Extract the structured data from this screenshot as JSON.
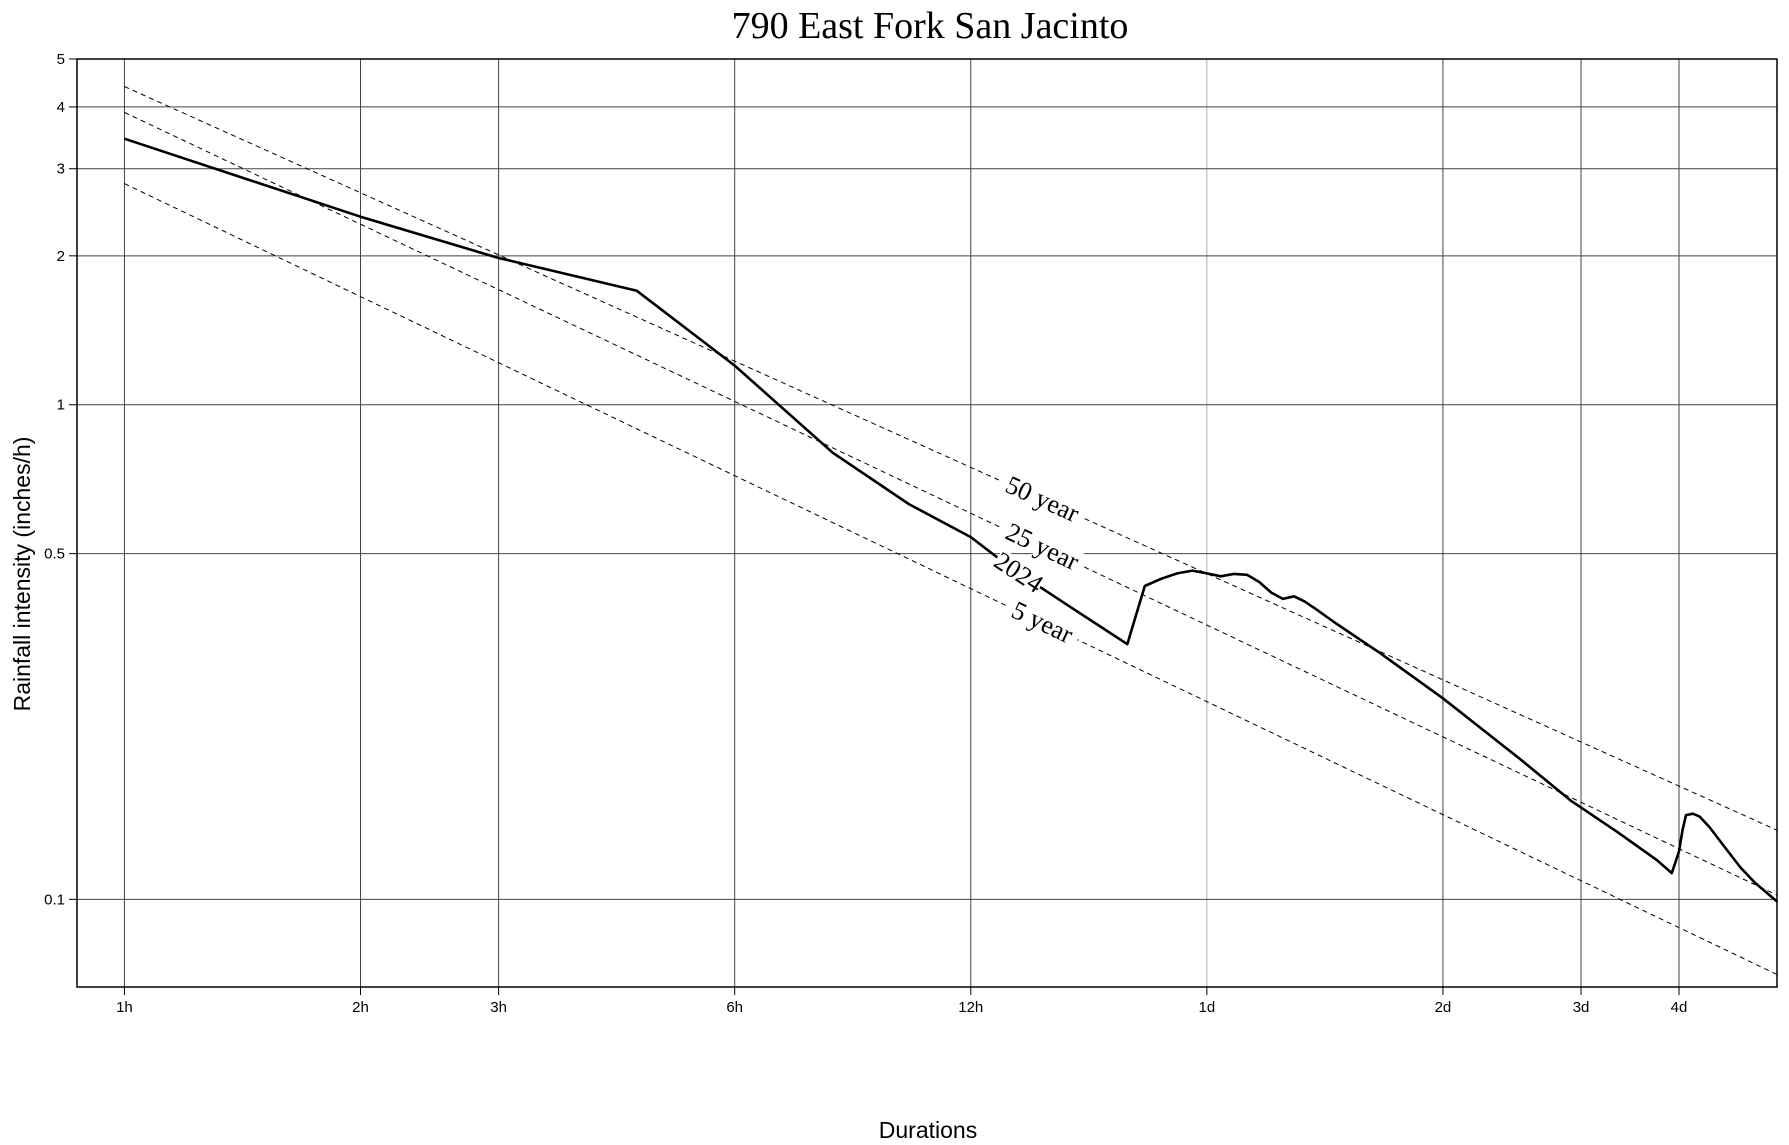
{
  "chart_data": {
    "type": "line",
    "title": "790 East Fork San Jacinto",
    "xlabel": "Durations",
    "ylabel": "Rainfall intensity (inches/h)",
    "x_scale": "log",
    "y_scale": "log",
    "x_unit": "hours",
    "xlim": [
      0.87,
      128
    ],
    "ylim": [
      0.0665,
      5
    ],
    "grid": true,
    "legend": "none",
    "x_ticks": [
      {
        "value": 1,
        "label": "1h"
      },
      {
        "value": 2,
        "label": "2h"
      },
      {
        "value": 3,
        "label": "3h"
      },
      {
        "value": 6,
        "label": "6h"
      },
      {
        "value": 12,
        "label": "12h"
      },
      {
        "value": 24,
        "label": "1d"
      },
      {
        "value": 48,
        "label": "2d"
      },
      {
        "value": 72,
        "label": "3d"
      },
      {
        "value": 96,
        "label": "4d"
      }
    ],
    "y_ticks": [
      {
        "value": 0.1,
        "label": "0.1"
      },
      {
        "value": 0.5,
        "label": "0.5"
      },
      {
        "value": 1,
        "label": "1"
      },
      {
        "value": 2,
        "label": "2"
      },
      {
        "value": 3,
        "label": "3"
      },
      {
        "value": 4,
        "label": "4"
      },
      {
        "value": 5,
        "label": "5"
      }
    ],
    "series": [
      {
        "name": "2024",
        "style": "solid",
        "label": "2024",
        "label_at": 13.8,
        "x": [
          1,
          2,
          3,
          4.5,
          6,
          8,
          10,
          12,
          13.5,
          16,
          18,
          19,
          20,
          21,
          22,
          23,
          24,
          25,
          26,
          27,
          28,
          29,
          30,
          31,
          32,
          33,
          35,
          40,
          48,
          60,
          70,
          80,
          90,
          94,
          96,
          97,
          98,
          100,
          102,
          105,
          110,
          115,
          120,
          128
        ],
        "y": [
          3.45,
          2.4,
          1.98,
          1.7,
          1.2,
          0.8,
          0.63,
          0.54,
          0.468,
          0.392,
          0.347,
          0.328,
          0.43,
          0.445,
          0.456,
          0.462,
          0.456,
          0.45,
          0.455,
          0.453,
          0.438,
          0.417,
          0.405,
          0.41,
          0.4,
          0.387,
          0.362,
          0.314,
          0.255,
          0.193,
          0.158,
          0.137,
          0.12,
          0.113,
          0.125,
          0.138,
          0.148,
          0.149,
          0.147,
          0.14,
          0.127,
          0.116,
          0.108,
          0.099
        ]
      },
      {
        "name": "50 year",
        "style": "dashed",
        "label": "50 year",
        "label_at": 14.8,
        "x": [
          1,
          128
        ],
        "y": [
          4.4,
          0.138
        ]
      },
      {
        "name": "25 year",
        "style": "dashed",
        "label": "25 year",
        "label_at": 14.8,
        "x": [
          1,
          128
        ],
        "y": [
          3.9,
          0.102
        ]
      },
      {
        "name": "5 year",
        "style": "dashed",
        "label": "5 year",
        "label_at": 14.8,
        "x": [
          1,
          128
        ],
        "y": [
          2.8,
          0.0705
        ]
      }
    ]
  }
}
